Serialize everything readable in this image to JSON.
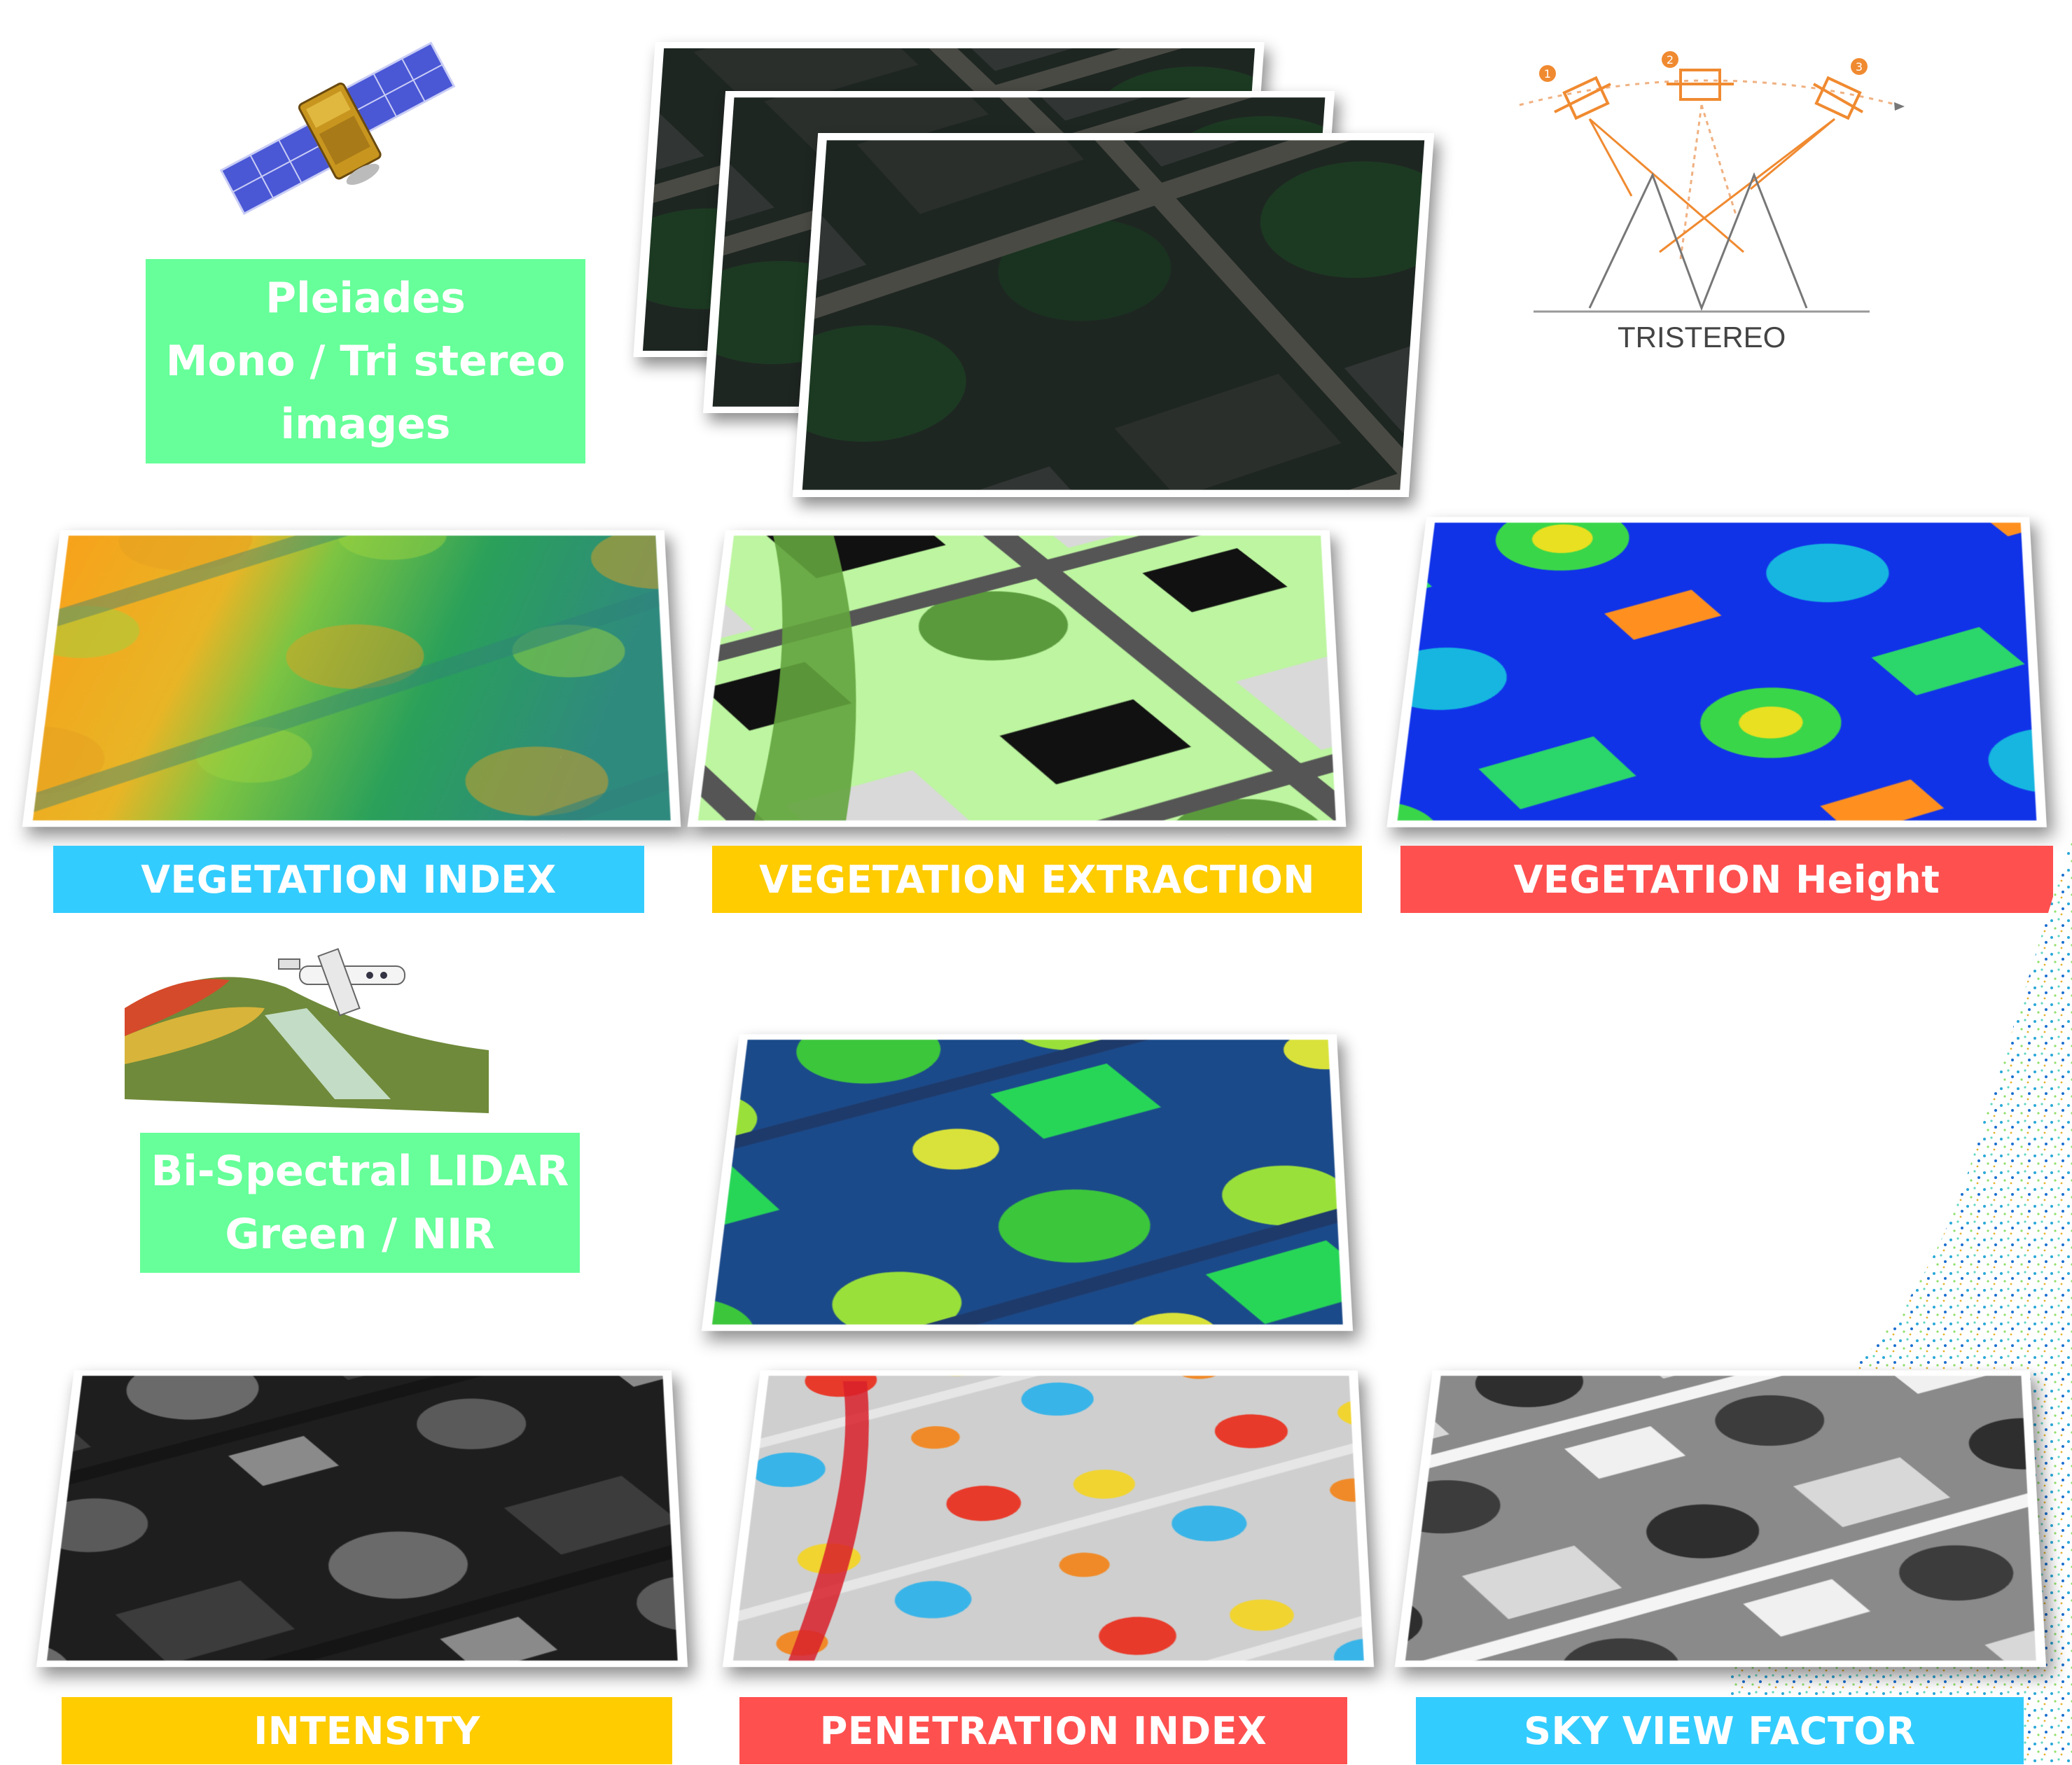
{
  "boxes": {
    "pleiades": [
      "Pleiades",
      "Mono / Tri stereo",
      "images"
    ],
    "lidar": [
      "Bi-Spectral LIDAR",
      "Green / NIR"
    ]
  },
  "labels": {
    "vegetation_index": "VEGETATION INDEX",
    "vegetation_extraction": "VEGETATION EXTRACTION",
    "vegetation_height": "VEGETATION Height",
    "intensity": "INTENSITY",
    "penetration_index": "PENETRATION INDEX",
    "sky_view_factor": "SKY VIEW FACTOR"
  },
  "tristereo": {
    "caption": "TRISTEREO",
    "steps": [
      "1",
      "2",
      "3"
    ]
  },
  "colors": {
    "green_box": "#66ff99",
    "blue_label": "#33ccff",
    "orange_label": "#ffcc00",
    "red_label": "#ff5050"
  }
}
